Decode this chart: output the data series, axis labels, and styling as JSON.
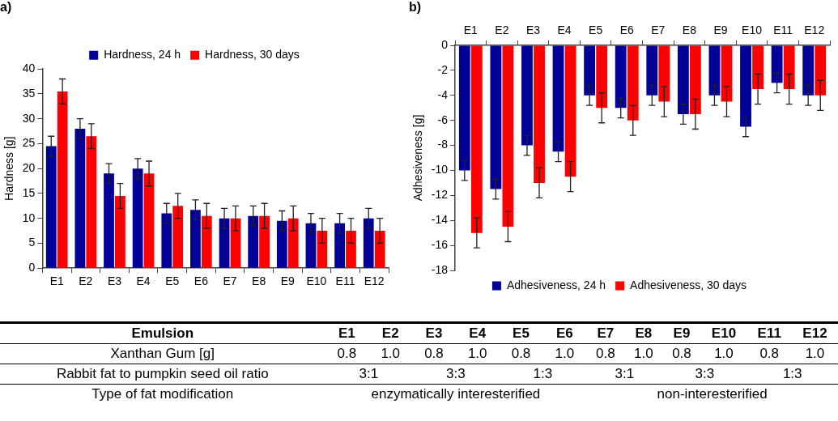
{
  "chart_data": [
    {
      "type": "bar",
      "title": "a)",
      "ylabel": "Hardness [g]",
      "categories": [
        "E1",
        "E2",
        "E3",
        "E4",
        "E5",
        "E6",
        "E7",
        "E8",
        "E9",
        "E10",
        "E11",
        "E12"
      ],
      "series": [
        {
          "name": "Hardness, 24 h",
          "color": "#000099",
          "values": [
            24.5,
            28,
            19,
            20,
            11,
            11.7,
            10,
            10.5,
            9.5,
            9,
            9,
            10
          ],
          "errors": [
            2,
            2,
            2,
            2,
            2,
            2,
            2,
            2,
            2,
            2,
            2,
            2
          ]
        },
        {
          "name": "Hardness, 30 days",
          "color": "#ff0000",
          "values": [
            35.5,
            26.5,
            14.5,
            19,
            12.5,
            10.5,
            10,
            10.5,
            10,
            7.5,
            7.5,
            7.5
          ],
          "errors": [
            2.5,
            2.5,
            2.5,
            2.5,
            2.5,
            2.5,
            2.5,
            2.5,
            2.5,
            2.5,
            2.5,
            2.5
          ]
        }
      ],
      "ylim": [
        0,
        40
      ],
      "yticks": [
        0,
        5,
        10,
        15,
        20,
        25,
        30,
        35,
        40
      ],
      "legend": "top"
    },
    {
      "type": "bar",
      "title": "b)",
      "ylabel": "Adhesiveness [g]",
      "categories": [
        "E1",
        "E2",
        "E3",
        "E4",
        "E5",
        "E6",
        "E7",
        "E8",
        "E9",
        "E10",
        "E11",
        "E12"
      ],
      "series": [
        {
          "name": "Adhesiveness, 24 h",
          "color": "#000099",
          "values": [
            -10,
            -11.5,
            -8,
            -8.5,
            -4,
            -5,
            -4,
            -5.5,
            -4,
            -6.5,
            -3,
            -4
          ],
          "errors": [
            0.8,
            0.8,
            0.8,
            0.8,
            0.8,
            0.8,
            0.8,
            0.8,
            0.8,
            0.8,
            0.8,
            0.8
          ]
        },
        {
          "name": "Adhesiveness, 30 days",
          "color": "#ff0000",
          "values": [
            -15,
            -14.5,
            -11,
            -10.5,
            -5,
            -6,
            -4.5,
            -5.5,
            -4.5,
            -3.5,
            -3.5,
            -4
          ],
          "errors": [
            1.2,
            1.2,
            1.2,
            1.2,
            1.2,
            1.2,
            1.2,
            1.2,
            1.2,
            1.2,
            1.2,
            1.2
          ]
        }
      ],
      "ylim": [
        -18,
        0
      ],
      "yticks": [
        -18,
        -16,
        -14,
        -12,
        -10,
        -8,
        -6,
        -4,
        -2,
        0
      ],
      "legend": "bottom"
    },
    {
      "type": "other",
      "ylabel": "Emulsion",
      "categories": [
        "E1",
        "E2",
        "E3",
        "E4",
        "E5",
        "E6",
        "E7",
        "E8",
        "E9",
        "E10",
        "E11",
        "E12"
      ],
      "y_categories": [
        "Xanthan Gum [g]",
        "Rabbit fat to pumpkin seed oil ratio",
        "Type of fat modification"
      ],
      "cell_labels": [
        [
          "0.8",
          "1.0",
          "0.8",
          "1.0",
          "0.8",
          "1.0",
          "0.8",
          "1.0",
          "0.8",
          "1.0",
          "0.8",
          "1.0"
        ],
        [
          "3:1",
          null,
          "3:3",
          null,
          "1:3",
          null,
          "3:1",
          null,
          "3:3",
          null,
          "1:3",
          null
        ],
        [
          "enzymatically interesterified",
          null,
          null,
          null,
          null,
          null,
          "non-interesterified",
          null,
          null,
          null,
          null,
          null
        ]
      ]
    }
  ]
}
